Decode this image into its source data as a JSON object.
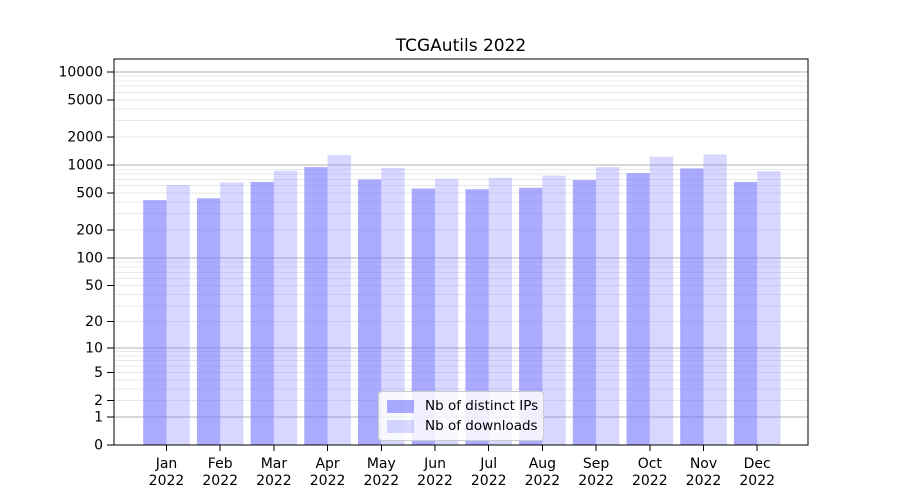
{
  "title": "TCGAutils 2022",
  "legend": {
    "position": "lower center",
    "items": [
      {
        "label": "Nb of distinct IPs",
        "alpha": 0.65
      },
      {
        "label": "Nb of downloads",
        "alpha": 0.3
      }
    ]
  },
  "chart_data": {
    "type": "bar",
    "title": "TCGAutils 2022",
    "categories": [
      "Jan 2022",
      "Feb 2022",
      "Mar 2022",
      "Apr 2022",
      "May 2022",
      "Jun 2022",
      "Jul 2022",
      "Aug 2022",
      "Sep 2022",
      "Oct 2022",
      "Nov 2022",
      "Dec 2022"
    ],
    "series": [
      {
        "name": "Nb of distinct IPs",
        "values": [
          420,
          440,
          660,
          950,
          700,
          560,
          550,
          570,
          690,
          820,
          920,
          660
        ]
      },
      {
        "name": "Nb of downloads",
        "values": [
          610,
          650,
          870,
          1280,
          930,
          710,
          730,
          770,
          950,
          1230,
          1300,
          860
        ]
      }
    ],
    "xlabel": "",
    "ylabel": "",
    "yscale": "symlog",
    "ylim": [
      0,
      13700
    ],
    "yticks": [
      0,
      1,
      2,
      5,
      10,
      20,
      50,
      100,
      200,
      500,
      1000,
      2000,
      5000,
      10000
    ],
    "grid": "major+minor",
    "legend_position": "lower center",
    "colors": {
      "bar_base": "#7c7cff",
      "series_alpha": [
        0.65,
        0.3
      ],
      "grid_major": "#b0b0b0",
      "grid_minor": "#e8e8e8",
      "axis": "#000000",
      "text": "#000000"
    }
  }
}
